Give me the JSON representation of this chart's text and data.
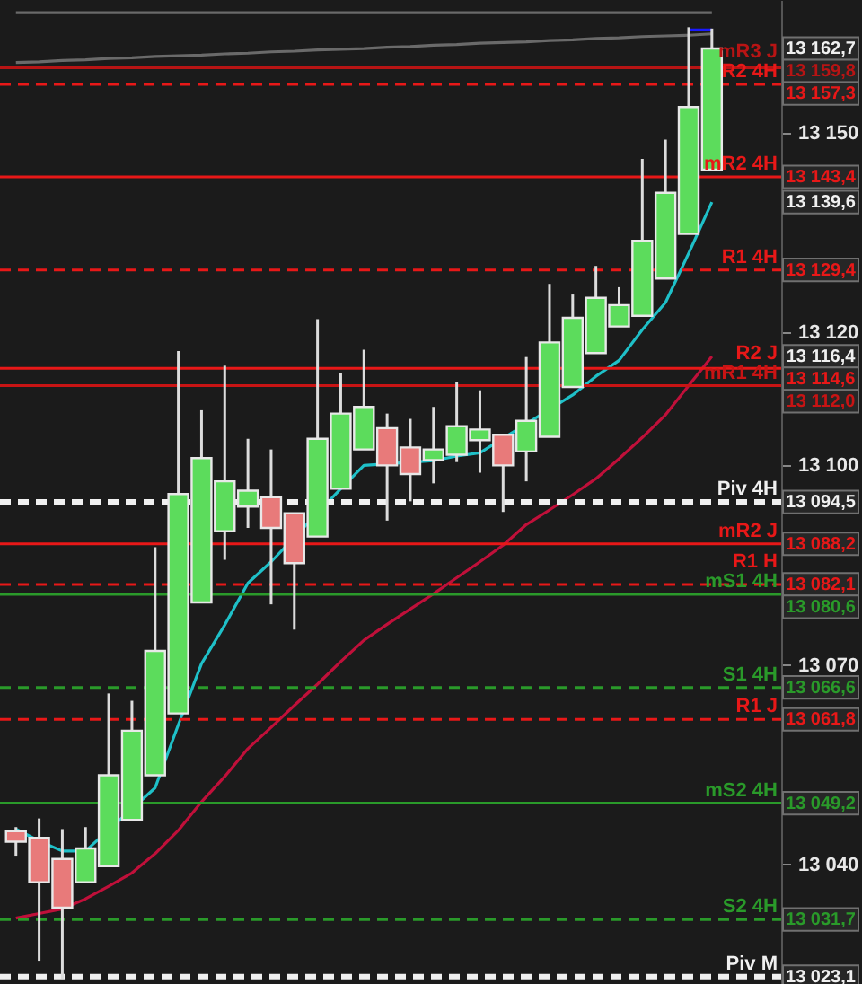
{
  "chart_data": {
    "type": "candlestick",
    "tick_labels": "y",
    "grid": false,
    "ylim": [
      13022,
      13170
    ],
    "yticks": [
      {
        "value": 13040,
        "label": "13 040"
      },
      {
        "value": 13070,
        "label": "13 070"
      },
      {
        "value": 13100,
        "label": "13 100"
      },
      {
        "value": 13120,
        "label": "13 120"
      },
      {
        "value": 13150,
        "label": "13 150"
      }
    ],
    "categories": [
      null,
      null,
      null,
      null,
      null,
      null,
      null,
      null,
      null,
      null,
      null,
      null,
      null,
      null,
      null,
      null,
      null,
      null,
      null,
      null,
      null,
      null,
      null,
      null,
      null,
      null,
      null,
      null,
      null,
      null,
      null
    ],
    "ohlc": [
      [
        13045.0,
        13045.6,
        13041.3,
        13043.4
      ],
      [
        13044.0,
        13046.9,
        13025.5,
        13037.3
      ],
      [
        13040.8,
        13045.3,
        13022.8,
        13033.5
      ],
      [
        13037.3,
        13045.6,
        13037.3,
        13042.4
      ],
      [
        13039.7,
        13065.7,
        13039.7,
        13053.4
      ],
      [
        13046.7,
        13064.6,
        13046.7,
        13060.1
      ],
      [
        13053.4,
        13087.7,
        13053.4,
        13072.1
      ],
      [
        13062.7,
        13117.2,
        13062.7,
        13095.7
      ],
      [
        13079.4,
        13108.3,
        13079.4,
        13101.1
      ],
      [
        13090.1,
        13115.0,
        13085.8,
        13097.6
      ],
      [
        13093.8,
        13104.0,
        13090.6,
        13096.2
      ],
      [
        13095.2,
        13102.4,
        13079.1,
        13090.6
      ],
      [
        13092.8,
        13092.8,
        13075.3,
        13085.3
      ],
      [
        13089.3,
        13122.0,
        13089.3,
        13104.0
      ],
      [
        13096.5,
        13113.9,
        13096.5,
        13107.8
      ],
      [
        13102.4,
        13117.4,
        13102.4,
        13108.8
      ],
      [
        13105.6,
        13107.8,
        13091.7,
        13100.0
      ],
      [
        13102.7,
        13107.0,
        13094.6,
        13098.7
      ],
      [
        13100.8,
        13108.8,
        13097.3,
        13102.4
      ],
      [
        13101.6,
        13112.6,
        13100.5,
        13105.9
      ],
      [
        13103.8,
        13111.3,
        13098.9,
        13105.4
      ],
      [
        13104.6,
        13104.6,
        13093.0,
        13100.0
      ],
      [
        13102.1,
        13116.3,
        13097.6,
        13106.7
      ],
      [
        13104.3,
        13127.3,
        13104.3,
        13118.5
      ],
      [
        13111.8,
        13125.7,
        13111.8,
        13122.2
      ],
      [
        13116.9,
        13130.0,
        13116.9,
        13125.2
      ],
      [
        13120.9,
        13126.8,
        13120.9,
        13124.1
      ],
      [
        13122.5,
        13146.1,
        13122.5,
        13133.8
      ],
      [
        13128.1,
        13149.0,
        13128.1,
        13141.0
      ],
      [
        13134.8,
        13165.9,
        13134.8,
        13153.9
      ],
      [
        13144.5,
        13165.7,
        13144.5,
        13162.7
      ]
    ],
    "colors": [
      "#e87a7a",
      "#e87a7a",
      "#e87a7a",
      "#5cdc5c",
      "#5cdc5c",
      "#5cdc5c",
      "#5cdc5c",
      "#5cdc5c",
      "#5cdc5c",
      "#5cdc5c",
      "#5cdc5c",
      "#e87a7a",
      "#e87a7a",
      "#5cdc5c",
      "#5cdc5c",
      "#5cdc5c",
      "#e87a7a",
      "#e87a7a",
      "#5cdc5c",
      "#5cdc5c",
      "#5cdc5c",
      "#e87a7a",
      "#5cdc5c",
      "#5cdc5c",
      "#5cdc5c",
      "#5cdc5c",
      "#5cdc5c",
      "#5cdc5c",
      "#5cdc5c",
      "#5cdc5c",
      "#5cdc5c"
    ],
    "series": [
      {
        "type": "line",
        "color": "#6a6a6a",
        "values": [
          13168.1,
          13168.1,
          13168.1,
          13168.1,
          13168.1,
          13168.1,
          13168.1,
          13168.1,
          13168.1,
          13168.1,
          13168.1,
          13168.1,
          13168.1,
          13168.1,
          13168.1,
          13168.1,
          13168.1,
          13168.1,
          13168.1,
          13168.1,
          13168.1,
          13168.1,
          13168.1,
          13168.1,
          13168.1,
          13168.1,
          13168.1,
          13168.1,
          13168.1,
          13168.1,
          13168.1
        ]
      },
      {
        "type": "line",
        "color": "#6a6a6a",
        "values": [
          13160.6,
          13160.7,
          13160.9,
          13161.0,
          13161.2,
          13161.3,
          13161.5,
          13161.6,
          13161.7,
          13161.9,
          13162.0,
          13162.2,
          13162.3,
          13162.5,
          13162.6,
          13162.7,
          13162.9,
          13163.0,
          13163.2,
          13163.3,
          13163.5,
          13163.6,
          13163.7,
          13163.9,
          13164.0,
          13164.2,
          13164.3,
          13164.5,
          13164.6,
          13164.7,
          13164.9
        ]
      },
      {
        "type": "line",
        "color": "#1a1aff",
        "values": [
          null,
          null,
          null,
          null,
          null,
          null,
          null,
          null,
          null,
          null,
          null,
          null,
          null,
          null,
          null,
          null,
          null,
          null,
          null,
          null,
          null,
          null,
          null,
          null,
          null,
          null,
          null,
          null,
          null,
          13165.5,
          13165.5
        ]
      },
      {
        "type": "line",
        "color": "#c0103a",
        "values": [
          13031.9,
          13032.6,
          13033.3,
          13034.8,
          13036.7,
          13038.7,
          13041.6,
          13045.1,
          13049.4,
          13053.2,
          13057.4,
          13060.6,
          13063.9,
          13067.1,
          13070.5,
          13073.7,
          13076.1,
          13078.4,
          13080.7,
          13083.1,
          13085.5,
          13088.0,
          13091.1,
          13093.3,
          13095.6,
          13098.0,
          13101.0,
          13104.2,
          13107.6,
          13112.0,
          13116.4
        ]
      },
      {
        "type": "line",
        "color": "#1fc0c8",
        "values": [
          13045.3,
          13043.5,
          13042.0,
          13042.0,
          null,
          null,
          13051.5,
          13061.0,
          13070.2,
          13076.0,
          13082.3,
          13085.5,
          null,
          null,
          13096.5,
          13100.0,
          null,
          null,
          13100.7,
          13101.4,
          13101.9,
          null,
          null,
          null,
          13110.6,
          13113.4,
          13115.8,
          13120.4,
          13124.5,
          13131.9,
          13139.6
        ]
      }
    ],
    "ref_lines": [
      {
        "axis": "y",
        "value": 13159.8,
        "label": "mR3 J",
        "color": "#b81414",
        "line_style": "solid"
      },
      {
        "axis": "y",
        "value": 13157.3,
        "label": "R2 4H",
        "color": "#e81818",
        "line_style": "dashed"
      },
      {
        "axis": "y",
        "value": 13143.4,
        "label": "mR2 4H",
        "color": "#e81818",
        "line_style": "solid"
      },
      {
        "axis": "y",
        "value": 13129.4,
        "label": "R1 4H",
        "color": "#e81818",
        "line_style": "dashed"
      },
      {
        "axis": "y",
        "value": 13114.6,
        "label": "R2 J",
        "color": "#e81818",
        "line_style": "solid"
      },
      {
        "axis": "y",
        "value": 13112.0,
        "label": "mR1 4H",
        "color": "#c81414",
        "line_style": "solid"
      },
      {
        "axis": "y",
        "value": 13094.5,
        "label": "Piv 4H",
        "color": "#f0f0f0",
        "line_style": "dashed"
      },
      {
        "axis": "y",
        "value": 13088.2,
        "label": "mR2 J",
        "color": "#e81818",
        "line_style": "solid"
      },
      {
        "axis": "y",
        "value": 13082.1,
        "label": "R1 H",
        "color": "#e81818",
        "line_style": "dashed"
      },
      {
        "axis": "y",
        "value": 13080.6,
        "label": "mS1 4H",
        "color": "#2a9a2a",
        "line_style": "solid"
      },
      {
        "axis": "y",
        "value": 13066.6,
        "label": "S1 4H",
        "color": "#2a9a2a",
        "line_style": "dashed"
      },
      {
        "axis": "y",
        "value": 13061.8,
        "label": "R1 J",
        "color": "#e81818",
        "line_style": "dashed"
      },
      {
        "axis": "y",
        "value": 13049.2,
        "label": "mS2 4H",
        "color": "#2a9a2a",
        "line_style": "solid"
      },
      {
        "axis": "y",
        "value": 13031.7,
        "label": "S2 4H",
        "color": "#2a9a2a",
        "line_style": "dashed"
      },
      {
        "axis": "y",
        "value": 13023.1,
        "label": "Piv M",
        "color": "#f0f0f0",
        "line_style": "dashed"
      }
    ],
    "annotations": [
      "13 159,8",
      "13 157,3",
      "13 143,4",
      "13 129,4",
      "13 114,6",
      "13 112,0",
      "13 094,5",
      "13 088,2",
      "13 082,1",
      "13 080,6",
      "13 066,6",
      "13 061,8",
      "13 049,2",
      "13 031,7",
      "13 023,1",
      "13 162,7",
      "13 139,6",
      "13 116,4"
    ]
  }
}
